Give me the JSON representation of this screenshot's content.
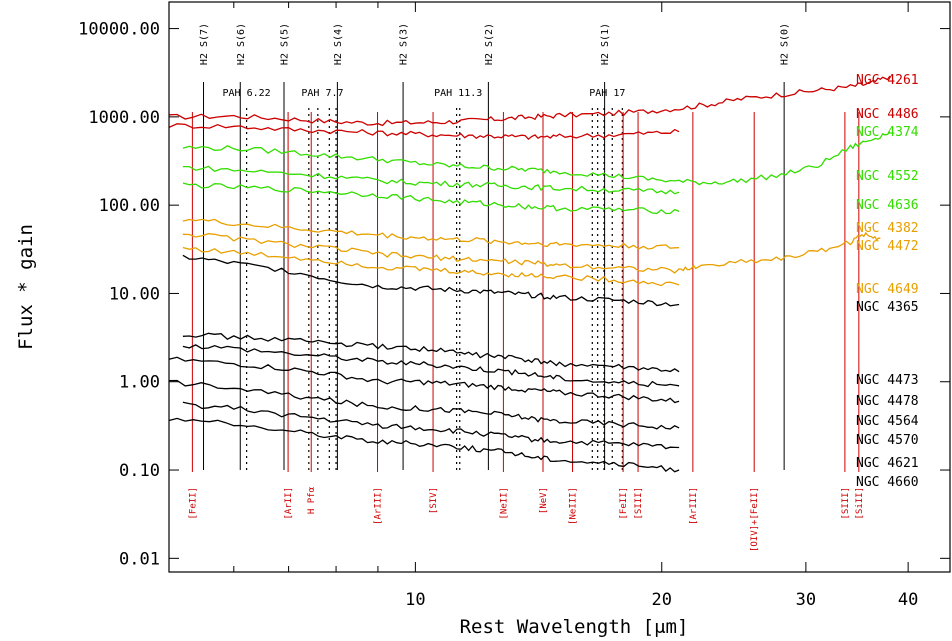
{
  "chart_data": {
    "type": "line",
    "xlabel": "Rest Wavelength [μm]",
    "ylabel": "Flux * gain",
    "xlim": [
      5.0,
      45.0
    ],
    "ylim": [
      0.007,
      20000
    ],
    "x_scale": "log",
    "y_scale": "log",
    "x_tick_labels": [
      {
        "value": 10,
        "label": "10"
      },
      {
        "value": 20,
        "label": "20"
      },
      {
        "value": 30,
        "label": "30"
      },
      {
        "value": 40,
        "label": "40"
      }
    ],
    "x_minor_ticks": [
      6,
      7,
      8,
      9
    ],
    "y_tick_labels": [
      {
        "value": 10000,
        "label": "10000.00"
      },
      {
        "value": 1000,
        "label": "1000.00"
      },
      {
        "value": 100,
        "label": "100.00"
      },
      {
        "value": 10,
        "label": "10.00"
      },
      {
        "value": 1,
        "label": "1.00"
      },
      {
        "value": 0.1,
        "label": "0.10"
      },
      {
        "value": 0.01,
        "label": "0.01"
      }
    ],
    "h2_lines": [
      {
        "label": "H2 S(7)",
        "x": 5.51
      },
      {
        "label": "H2 S(6)",
        "x": 6.11
      },
      {
        "label": "H2 S(5)",
        "x": 6.91
      },
      {
        "label": "H2 S(4)",
        "x": 8.03
      },
      {
        "label": "H2 S(3)",
        "x": 9.66
      },
      {
        "label": "H2 S(2)",
        "x": 12.28
      },
      {
        "label": "H2 S(1)",
        "x": 17.03
      },
      {
        "label": "H2 S(0)",
        "x": 28.22
      }
    ],
    "pah_features": [
      {
        "label": "PAH 6.22",
        "x": [
          6.22
        ]
      },
      {
        "label": "PAH 7.7",
        "x": [
          7.41,
          7.6,
          7.85,
          8.0
        ]
      },
      {
        "label": "PAH 11.3",
        "x": [
          11.23,
          11.33
        ]
      },
      {
        "label": "PAH 17",
        "x": [
          16.45,
          16.7,
          17.0,
          17.4,
          17.9
        ]
      }
    ],
    "ion_lines": [
      {
        "label": "[FeII]",
        "x": 5.34
      },
      {
        "label": "[ArII]",
        "x": 6.99
      },
      {
        "label": "H Pfα",
        "x": 7.46
      },
      {
        "label": "[ArIII]",
        "x": 8.99
      },
      {
        "label": "[SIV]",
        "x": 10.51
      },
      {
        "label": "[NeII]",
        "x": 12.81
      },
      {
        "label": "[NeV]",
        "x": 14.32
      },
      {
        "label": "[NeIII]",
        "x": 15.56
      },
      {
        "label": "[FeII]",
        "x": 17.94
      },
      {
        "label": "[SIII]",
        "x": 18.71
      },
      {
        "label": "[ArIII]",
        "x": 21.83
      },
      {
        "label": "[OIV]+[FeII]",
        "x": 25.94
      },
      {
        "label": "[SIII]",
        "x": 33.48
      },
      {
        "label": "[SiII]",
        "x": 34.82
      }
    ],
    "series": [
      {
        "name": "NGC 4261",
        "color": "#cc0000",
        "x": [
          5.0,
          6.0,
          7.0,
          8.0,
          9.0,
          10.0,
          11.0,
          12.0,
          13.0,
          14.0,
          15.0,
          17.0,
          19.0,
          21.0,
          23.0,
          25.0,
          28.0,
          31.0,
          34.0,
          36.0,
          38.0
        ],
        "y": [
          1000,
          1020,
          950,
          880,
          850,
          860,
          880,
          920,
          960,
          1000,
          1040,
          1080,
          1150,
          1250,
          1400,
          1600,
          1800,
          2000,
          2200,
          2400,
          2900
        ]
      },
      {
        "name": "NGC 4486",
        "color": "#cc0000",
        "x": [
          5.0,
          6.0,
          7.0,
          8.0,
          9.0,
          10.0,
          11.0,
          12.0,
          13.0,
          14.0,
          15.0,
          17.0,
          19.0,
          21.0
        ],
        "y": [
          800,
          780,
          720,
          690,
          660,
          640,
          620,
          610,
          600,
          590,
          600,
          620,
          650,
          680
        ]
      },
      {
        "name": "NGC 4374",
        "color": "#33dd00",
        "x": [
          5.2,
          6.0,
          7.0,
          8.0,
          9.0,
          10.0,
          11.0,
          12.0,
          13.0,
          14.0,
          15.0,
          17.0,
          19.0,
          21.0,
          23.0,
          25.0,
          28.0,
          31.0,
          34.0,
          36.0,
          38.0
        ],
        "y": [
          450,
          440,
          400,
          360,
          330,
          300,
          280,
          270,
          260,
          250,
          240,
          220,
          200,
          185,
          180,
          190,
          220,
          280,
          450,
          550,
          680
        ]
      },
      {
        "name": "NGC 4552",
        "color": "#33dd00",
        "x": [
          5.2,
          6.0,
          7.0,
          8.0,
          9.0,
          10.0,
          11.0,
          12.0,
          13.0,
          14.0,
          15.0,
          17.0,
          19.0,
          21.0
        ],
        "y": [
          270,
          250,
          230,
          210,
          190,
          180,
          175,
          170,
          165,
          160,
          155,
          150,
          145,
          140
        ]
      },
      {
        "name": "NGC 4636",
        "color": "#33dd00",
        "x": [
          5.2,
          6.0,
          7.0,
          8.0,
          9.0,
          10.0,
          11.0,
          12.0,
          13.0,
          14.0,
          15.0,
          17.0,
          19.0,
          21.0
        ],
        "y": [
          170,
          160,
          150,
          140,
          130,
          120,
          110,
          105,
          100,
          95,
          92,
          90,
          87,
          85
        ]
      },
      {
        "name": "NGC 4382",
        "color": "#e8a000",
        "x": [
          5.2,
          6.0,
          7.0,
          8.0,
          9.0,
          10.0,
          11.0,
          12.0,
          13.0,
          14.0,
          15.0,
          17.0,
          19.0,
          21.0
        ],
        "y": [
          70,
          62,
          55,
          50,
          46,
          43,
          41,
          40,
          38,
          37,
          36,
          35,
          34,
          33
        ]
      },
      {
        "name": "NGC 4472",
        "color": "#e8a000",
        "x": [
          5.2,
          6.0,
          7.0,
          8.0,
          9.0,
          10.0,
          11.0,
          12.0,
          13.0,
          14.0,
          15.0,
          17.0,
          19.0,
          21.0,
          22.0,
          25.0,
          28.0,
          31.0,
          34.0,
          35.5,
          37.0
        ],
        "y": [
          48,
          42,
          36,
          32,
          28,
          26,
          25,
          24,
          23,
          22,
          21,
          20,
          19,
          18,
          20,
          23,
          25,
          30,
          38,
          48,
          42
        ]
      },
      {
        "name": "NGC 4649",
        "color": "#e8a000",
        "x": [
          5.2,
          6.0,
          7.0,
          8.0,
          9.0,
          10.0,
          11.0,
          12.0,
          13.0,
          14.0,
          15.0,
          17.0,
          19.0,
          21.0
        ],
        "y": [
          33,
          29,
          26,
          23,
          20,
          19,
          18,
          17,
          16.5,
          16,
          15.5,
          14.5,
          13.5,
          12.5
        ]
      },
      {
        "name": "NGC 4365",
        "color": "#000000",
        "x": [
          5.2,
          6.0,
          7.0,
          8.0,
          9.0,
          10.0,
          11.0,
          12.0,
          13.0,
          14.0,
          15.0,
          17.0,
          19.0,
          21.0
        ],
        "y": [
          26,
          22,
          18,
          14,
          12,
          11.5,
          11,
          10.5,
          10,
          9.5,
          9,
          8.5,
          8,
          7.5
        ]
      },
      {
        "name": "NGC 4473",
        "color": "#000000",
        "x": [
          5.2,
          6.0,
          7.0,
          8.0,
          9.0,
          10.0,
          11.0,
          12.0,
          13.0,
          14.0,
          15.0,
          17.0,
          19.0,
          21.0
        ],
        "y": [
          3.5,
          3.2,
          3.0,
          2.7,
          2.5,
          2.4,
          2.2,
          2.0,
          1.9,
          1.7,
          1.6,
          1.5,
          1.4,
          1.3
        ]
      },
      {
        "name": "NGC 4478",
        "color": "#000000",
        "x": [
          5.2,
          6.0,
          7.0,
          8.0,
          9.0,
          10.0,
          11.0,
          12.0,
          13.0,
          14.0,
          15.0,
          17.0,
          19.0,
          21.0
        ],
        "y": [
          2.6,
          2.4,
          2.1,
          1.9,
          1.7,
          1.6,
          1.5,
          1.4,
          1.3,
          1.2,
          1.1,
          1.0,
          0.95,
          0.9
        ]
      },
      {
        "name": "NGC 4564",
        "color": "#000000",
        "x": [
          5.0,
          6.0,
          7.0,
          8.0,
          9.0,
          10.0,
          11.0,
          12.0,
          13.0,
          14.0,
          15.0,
          17.0,
          19.0,
          21.0
        ],
        "y": [
          1.8,
          1.6,
          1.4,
          1.2,
          1.0,
          1.0,
          0.95,
          0.9,
          0.85,
          0.8,
          0.75,
          0.7,
          0.65,
          0.6
        ]
      },
      {
        "name": "NGC 4570",
        "color": "#000000",
        "x": [
          5.0,
          6.0,
          7.0,
          8.0,
          9.0,
          10.0,
          11.0,
          12.0,
          13.0,
          14.0,
          15.0,
          17.0,
          19.0,
          21.0
        ],
        "y": [
          1.0,
          0.85,
          0.7,
          0.6,
          0.52,
          0.5,
          0.48,
          0.45,
          0.42,
          0.38,
          0.36,
          0.34,
          0.32,
          0.3
        ]
      },
      {
        "name": "NGC 4621",
        "color": "#000000",
        "x": [
          5.2,
          6.0,
          7.0,
          8.0,
          9.0,
          10.0,
          11.0,
          12.0,
          13.0,
          14.0,
          15.0,
          17.0,
          19.0,
          21.0
        ],
        "y": [
          0.55,
          0.5,
          0.42,
          0.36,
          0.32,
          0.3,
          0.28,
          0.26,
          0.24,
          0.22,
          0.21,
          0.2,
          0.19,
          0.18
        ]
      },
      {
        "name": "NGC 4660",
        "color": "#000000",
        "x": [
          5.0,
          6.0,
          7.0,
          8.0,
          9.0,
          10.0,
          11.0,
          12.0,
          13.0,
          14.0,
          15.0,
          17.0,
          19.0,
          21.0
        ],
        "y": [
          0.38,
          0.33,
          0.28,
          0.24,
          0.21,
          0.2,
          0.19,
          0.17,
          0.16,
          0.14,
          0.13,
          0.12,
          0.11,
          0.1
        ]
      }
    ]
  }
}
